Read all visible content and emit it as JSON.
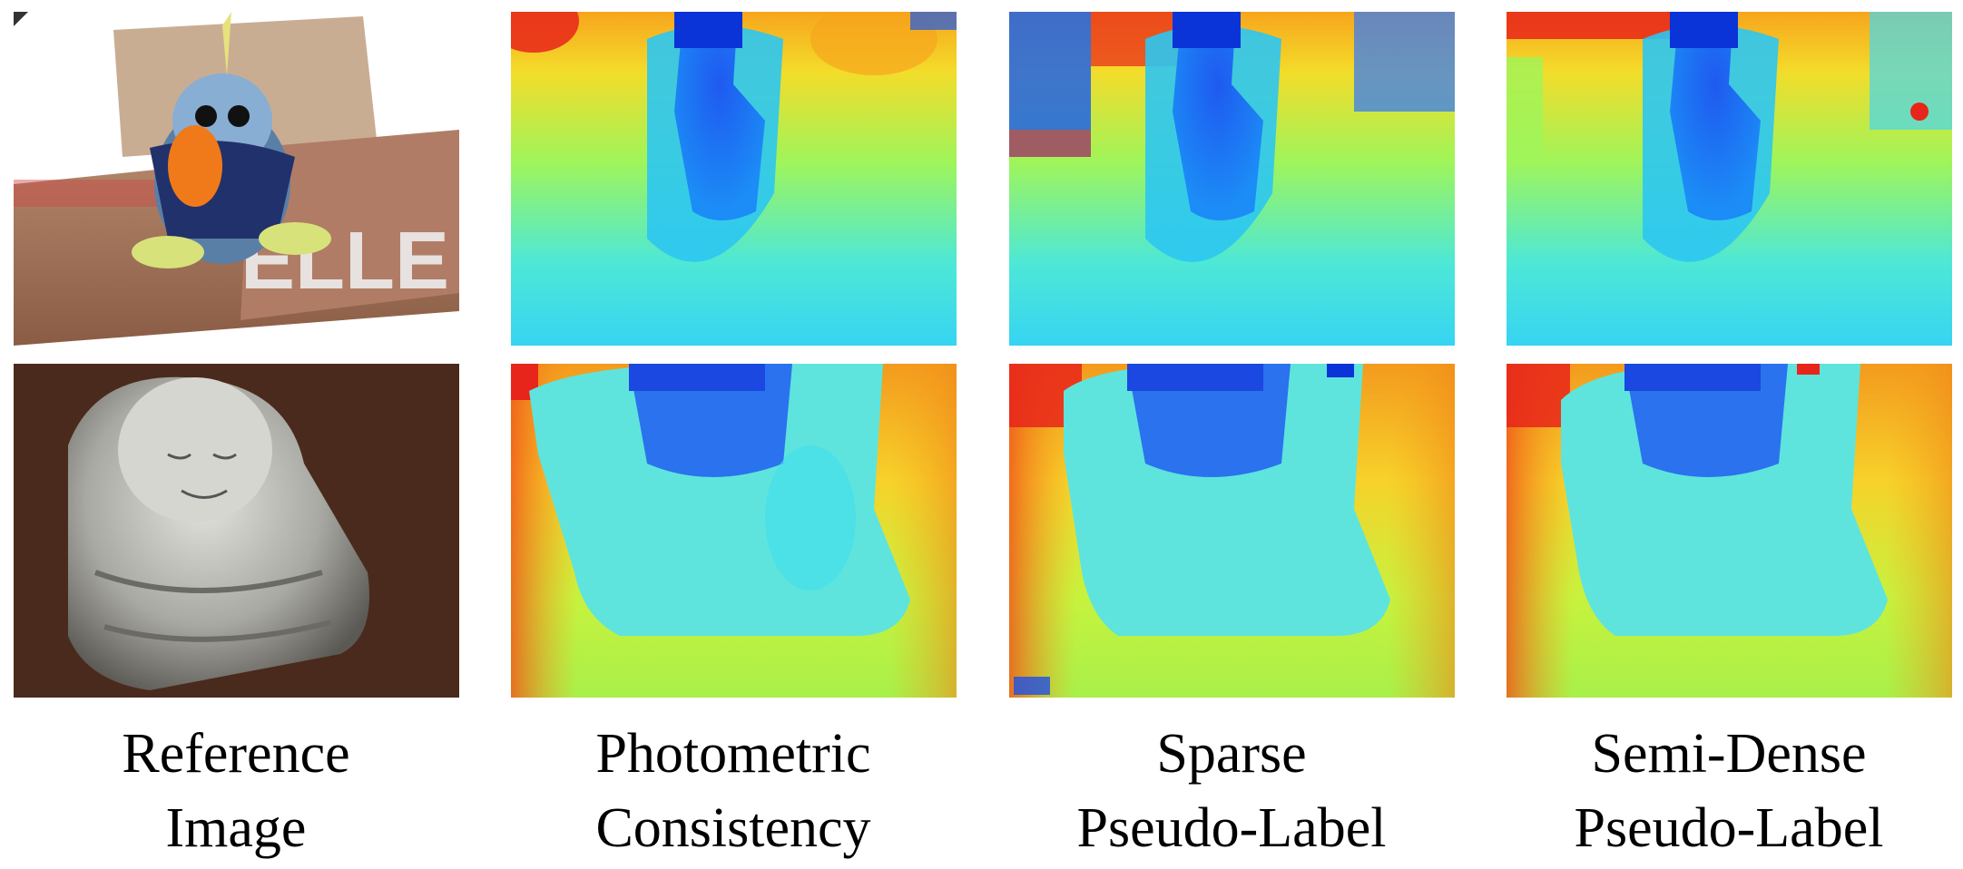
{
  "columns": [
    {
      "label_line1": "Reference",
      "label_line2": "Image"
    },
    {
      "label_line1": "Photometric",
      "label_line2": "Consistency"
    },
    {
      "label_line1": "Sparse",
      "label_line2": "Pseudo-Label"
    },
    {
      "label_line1": "Semi-Dense",
      "label_line2": "Pseudo-Label"
    }
  ],
  "colors": {
    "jet_red": "#e8251a",
    "jet_orange": "#f7a51c",
    "jet_yellow": "#d6ee3a",
    "jet_cyan": "#33e4ee",
    "jet_blue": "#0a33d8",
    "background": "#ffffff"
  }
}
